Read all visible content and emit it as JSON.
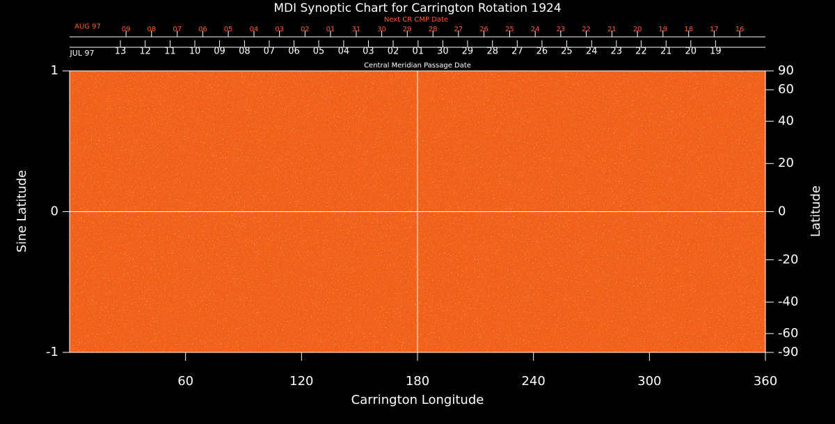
{
  "chart_data": {
    "type": "heatmap",
    "title": "MDI Synoptic Chart for Carrington Rotation 1924",
    "xlabel": "Carrington Longitude",
    "ylabel": "Sine Latitude",
    "y2label": "Latitude",
    "xlim": [
      0,
      360
    ],
    "xticks": [
      60,
      120,
      180,
      240,
      300,
      360
    ],
    "ylim": [
      -1,
      1
    ],
    "yticks": [
      1,
      0,
      -1
    ],
    "y2lim": [
      -90,
      90
    ],
    "y2scale": "sine",
    "y2ticks": [
      90,
      60,
      40,
      20,
      0,
      -20,
      -40,
      -60,
      -90
    ],
    "gridlines_x": [
      180
    ],
    "gridlines_y": [
      0
    ],
    "top_axis_cmp": {
      "label": "Central Meridian Passage Date",
      "start_label": "JUL 97",
      "color": "#ffffff",
      "ticks": [
        {
          "value": 26.3,
          "label": "13"
        },
        {
          "value": 39.1,
          "label": "12"
        },
        {
          "value": 52.0,
          "label": "11"
        },
        {
          "value": 64.8,
          "label": "10"
        },
        {
          "value": 77.6,
          "label": "09"
        },
        {
          "value": 90.5,
          "label": "08"
        },
        {
          "value": 103.3,
          "label": "07"
        },
        {
          "value": 116.1,
          "label": "06"
        },
        {
          "value": 128.9,
          "label": "05"
        },
        {
          "value": 141.8,
          "label": "04"
        },
        {
          "value": 154.6,
          "label": "03"
        },
        {
          "value": 167.4,
          "label": "02"
        },
        {
          "value": 180.3,
          "label": "01"
        },
        {
          "value": 193.1,
          "label": "30"
        },
        {
          "value": 205.9,
          "label": "29"
        },
        {
          "value": 218.8,
          "label": "28"
        },
        {
          "value": 231.6,
          "label": "27"
        },
        {
          "value": 244.4,
          "label": "26"
        },
        {
          "value": 257.2,
          "label": "25"
        },
        {
          "value": 270.1,
          "label": "24"
        },
        {
          "value": 282.9,
          "label": "23"
        },
        {
          "value": 295.7,
          "label": "22"
        },
        {
          "value": 308.6,
          "label": "21"
        },
        {
          "value": 321.4,
          "label": "20"
        },
        {
          "value": 334.2,
          "label": "19"
        }
      ]
    },
    "top_axis_next": {
      "label": "Next CR CMP Date",
      "start_label": "AUG 97",
      "color": "#ff5a2a",
      "ticks": [
        {
          "value": 29.2,
          "label": "09"
        },
        {
          "value": 42.4,
          "label": "08"
        },
        {
          "value": 55.7,
          "label": "07"
        },
        {
          "value": 68.9,
          "label": "06"
        },
        {
          "value": 82.1,
          "label": "05"
        },
        {
          "value": 95.4,
          "label": "04"
        },
        {
          "value": 108.6,
          "label": "03"
        },
        {
          "value": 121.8,
          "label": "02"
        },
        {
          "value": 135.0,
          "label": "01"
        },
        {
          "value": 148.3,
          "label": "31"
        },
        {
          "value": 161.5,
          "label": "30"
        },
        {
          "value": 174.7,
          "label": "29"
        },
        {
          "value": 188.0,
          "label": "28"
        },
        {
          "value": 201.2,
          "label": "27"
        },
        {
          "value": 214.4,
          "label": "26"
        },
        {
          "value": 227.7,
          "label": "25"
        },
        {
          "value": 240.9,
          "label": "24"
        },
        {
          "value": 254.1,
          "label": "23"
        },
        {
          "value": 267.3,
          "label": "22"
        },
        {
          "value": 280.6,
          "label": "21"
        },
        {
          "value": 293.8,
          "label": "20"
        },
        {
          "value": 307.0,
          "label": "19"
        },
        {
          "value": 320.3,
          "label": "18"
        },
        {
          "value": 333.5,
          "label": "17"
        },
        {
          "value": 346.7,
          "label": "16"
        }
      ]
    }
  }
}
